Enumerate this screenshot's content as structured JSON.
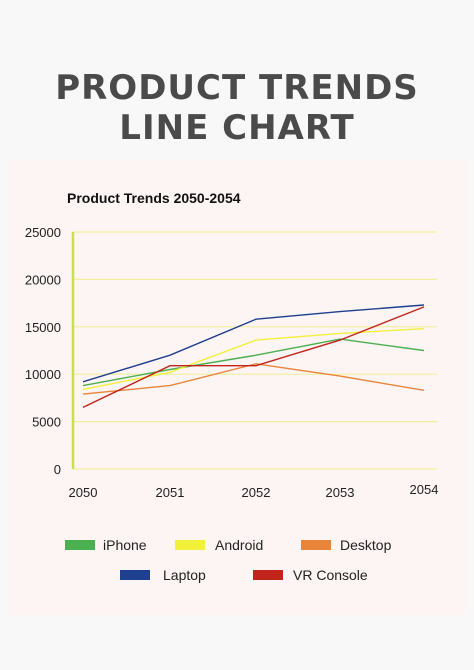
{
  "poster": {
    "title_line1": "PRODUCT TRENDS",
    "title_line2": "LINE CHART"
  },
  "colors": {
    "background": "#f8f8f8",
    "panel": "#fdf4f4",
    "title": "#4a4a4a",
    "grid": "#f2ef9c",
    "y_axis": "#c8e04a"
  },
  "chart_data": {
    "type": "line",
    "title": "Product Trends 2050-2054",
    "xlabel": "",
    "ylabel": "",
    "x": [
      "2050",
      "2051",
      "2052",
      "2053",
      "2054"
    ],
    "ylim": [
      0,
      25000
    ],
    "yticks": [
      "0",
      "5000",
      "10000",
      "15000",
      "20000",
      "25000"
    ],
    "grid": true,
    "legend_position": "bottom",
    "series": [
      {
        "name": "iPhone",
        "color": "#4caf50",
        "values": [
          8800,
          10500,
          12000,
          13700,
          12500
        ]
      },
      {
        "name": "Android",
        "color": "#f2f03a",
        "values": [
          8400,
          10200,
          13600,
          14300,
          14800
        ]
      },
      {
        "name": "Desktop",
        "color": "#e8853a",
        "values": [
          7900,
          8800,
          11100,
          9800,
          8300
        ]
      },
      {
        "name": "Laptop",
        "color": "#1f3f8f",
        "values": [
          9200,
          12000,
          15800,
          16600,
          17300
        ]
      },
      {
        "name": "VR Console",
        "color": "#c0241a",
        "values": [
          6500,
          10900,
          10900,
          13600,
          17100
        ]
      }
    ]
  }
}
